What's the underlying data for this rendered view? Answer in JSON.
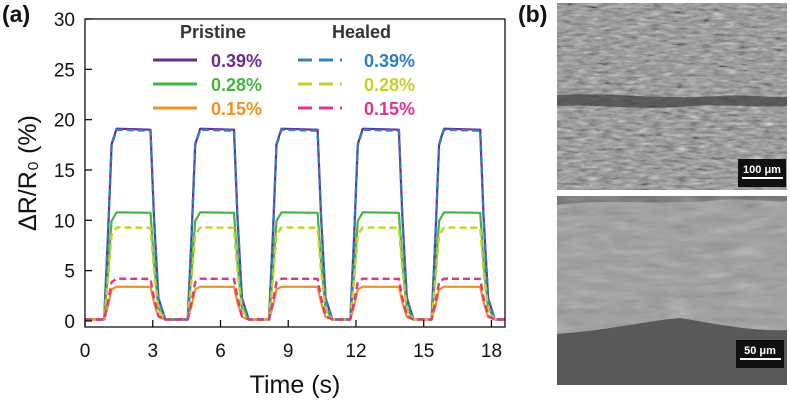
{
  "panels": {
    "a_label": "(a)",
    "b_label": "(b)"
  },
  "chart_data": {
    "type": "line",
    "xlabel": "Time (s)",
    "ylabel": "ΔR/R₀ (%)",
    "xlim": [
      0,
      18.6
    ],
    "ylim": [
      -0.6,
      30
    ],
    "xticks": [
      0,
      3,
      6,
      9,
      12,
      15,
      18
    ],
    "yticks": [
      0,
      5,
      10,
      15,
      20,
      25,
      30
    ],
    "grid": false,
    "legend_placement": "top",
    "legend_headers": [
      "Pristine",
      "Healed"
    ],
    "cycles": [
      {
        "on": 0.9,
        "off": 3.0
      },
      {
        "on": 4.6,
        "off": 6.7
      },
      {
        "on": 8.2,
        "off": 10.4
      },
      {
        "on": 11.8,
        "off": 14.0
      },
      {
        "on": 15.4,
        "off": 17.6
      }
    ],
    "series": [
      {
        "group": "Pristine",
        "strain": "0.39%",
        "color": "#6a2c91",
        "dash": "solid",
        "plateau": 19.1
      },
      {
        "group": "Pristine",
        "strain": "0.28%",
        "color": "#44b53c",
        "dash": "solid",
        "plateau": 10.8
      },
      {
        "group": "Pristine",
        "strain": "0.15%",
        "color": "#f5901e",
        "dash": "solid",
        "plateau": 3.4
      },
      {
        "group": "Healed",
        "strain": "0.39%",
        "color": "#2f7fc1",
        "dash": "dashed",
        "plateau": 19.0
      },
      {
        "group": "Healed",
        "strain": "0.28%",
        "color": "#c5d12a",
        "dash": "dashed",
        "plateau": 9.3
      },
      {
        "group": "Healed",
        "strain": "0.15%",
        "color": "#e2338b",
        "dash": "dashed",
        "plateau": 4.2
      }
    ]
  },
  "sem_images": [
    {
      "scale_label": "100 μm"
    },
    {
      "scale_label": "50 μm"
    }
  ]
}
